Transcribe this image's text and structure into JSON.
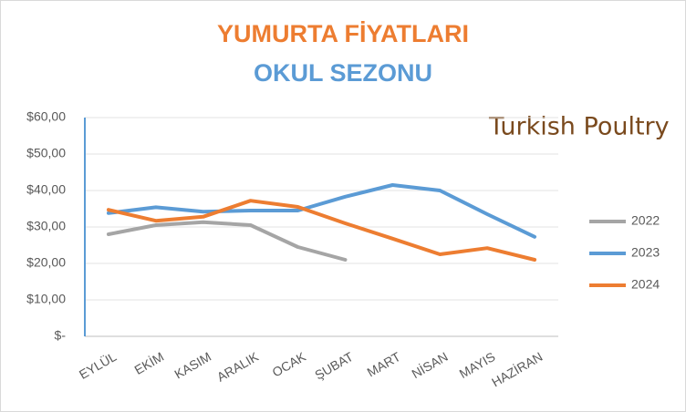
{
  "chart_data": {
    "type": "line",
    "title": "YUMURTA FİYATLARI",
    "subtitle": "OKUL SEZONU",
    "logo": "Turkish Poultry",
    "categories": [
      "EYLÜL",
      "EKİM",
      "KASIM",
      "ARALIK",
      "OCAK",
      "ŞUBAT",
      "MART",
      "NİSAN",
      "MAYIS",
      "HAZİRAN"
    ],
    "series": [
      {
        "name": "2022",
        "color": "#a5a5a5",
        "values": [
          28,
          30.5,
          31.3,
          30.5,
          24.5,
          21,
          null,
          null,
          null,
          null
        ]
      },
      {
        "name": "2023",
        "color": "#5b9bd5",
        "values": [
          33.8,
          35.4,
          34.2,
          34.5,
          34.5,
          38.3,
          41.5,
          40,
          33.5,
          27.3
        ]
      },
      {
        "name": "2024",
        "color": "#ed7d31",
        "values": [
          34.7,
          31.7,
          32.8,
          37.2,
          35.5,
          31,
          26.8,
          22.5,
          24.2,
          21
        ]
      }
    ],
    "ylim": [
      0,
      60
    ],
    "yticks": [
      {
        "value": 0,
        "label": "$-"
      },
      {
        "value": 10,
        "label": "$10,00"
      },
      {
        "value": 20,
        "label": "$20,00"
      },
      {
        "value": 30,
        "label": "$30,00"
      },
      {
        "value": 40,
        "label": "$40,00"
      },
      {
        "value": 50,
        "label": "$50,00"
      },
      {
        "value": 60,
        "label": "$60,00"
      }
    ],
    "grid": true,
    "legend": "right"
  }
}
